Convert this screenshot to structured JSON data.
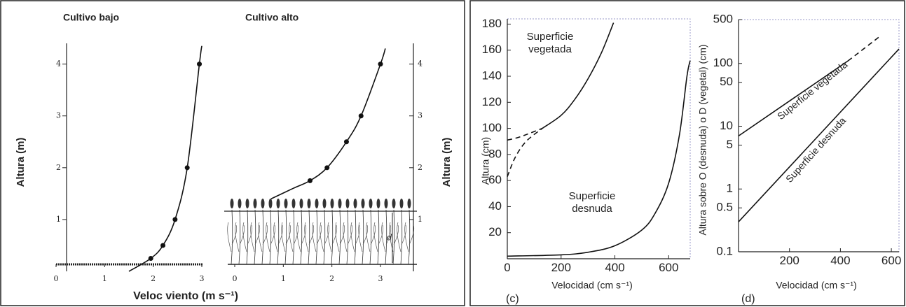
{
  "chart_data": [
    {
      "type": "line",
      "title": "Cultivo bajo",
      "xlabel": "Veloc viento (m s⁻¹)",
      "ylabel": "Altura (m)",
      "xlim": [
        0,
        3
      ],
      "ylim": [
        0,
        4.4
      ],
      "xticks": [
        0,
        1,
        2,
        3
      ],
      "yticks": [
        1,
        2,
        3,
        4
      ],
      "series": [
        {
          "mode": "line",
          "color": "#111111",
          "x": [
            1.5,
            1.95,
            2.2,
            2.45,
            2.7,
            2.95,
            3.0
          ],
          "values": [
            0,
            0.25,
            0.5,
            1,
            2,
            4,
            4.35
          ]
        },
        {
          "mode": "markers",
          "color": "#111111",
          "x": [
            1.95,
            2.2,
            2.45,
            2.7,
            2.95
          ],
          "values": [
            0.25,
            0.5,
            1,
            2,
            4
          ]
        }
      ]
    },
    {
      "type": "line",
      "title": "Cultivo alto",
      "ylabel": "Altura (m)",
      "annotations": [
        "d"
      ],
      "xlim": [
        0,
        3
      ],
      "ylim": [
        0,
        4.4
      ],
      "xticks": [
        0,
        1,
        2,
        3
      ],
      "yticks": [
        1,
        2,
        3,
        4
      ],
      "series": [
        {
          "mode": "line",
          "color": "#111111",
          "x": [
            0.75,
            1.2,
            1.55,
            1.9,
            2.3,
            2.6,
            3.0,
            3.1
          ],
          "values": [
            1.4,
            1.6,
            1.75,
            2.0,
            2.5,
            3.0,
            4.0,
            4.3
          ]
        },
        {
          "mode": "markers",
          "color": "#111111",
          "x": [
            1.55,
            1.9,
            2.3,
            2.6,
            3.0
          ],
          "values": [
            1.75,
            2.0,
            2.5,
            3.0,
            4.0
          ]
        }
      ]
    },
    {
      "type": "line",
      "panel_label": "(c)",
      "xlabel": "Velocidad (cm s⁻¹)",
      "ylabel": "Altura (cm)",
      "annotations": [
        "Superficie vegetada",
        "Superficie desnuda"
      ],
      "xlim": [
        0,
        680
      ],
      "ylim": [
        0,
        184
      ],
      "xticks": [
        0,
        200,
        400,
        600
      ],
      "yticks": [
        20,
        40,
        60,
        80,
        100,
        120,
        140,
        160,
        180
      ],
      "series": [
        {
          "mode": "line",
          "color": "#111111",
          "x": [
            130,
            200,
            250,
            300,
            350,
            395
          ],
          "values": [
            100,
            110,
            122,
            138,
            158,
            181
          ]
        },
        {
          "mode": "dashed",
          "color": "#111111",
          "x": [
            0,
            40,
            80,
            130
          ],
          "values": [
            91,
            93,
            96,
            100
          ]
        },
        {
          "mode": "dashed",
          "color": "#111111",
          "x": [
            0,
            30,
            70,
            130
          ],
          "values": [
            63,
            78,
            90,
            100
          ]
        },
        {
          "mode": "line",
          "color": "#111111",
          "x": [
            0,
            200,
            300,
            400,
            500,
            550,
            600,
            640,
            668,
            680
          ],
          "values": [
            2,
            3,
            5,
            10,
            22,
            35,
            58,
            95,
            140,
            152
          ]
        }
      ]
    },
    {
      "type": "line",
      "panel_label": "(d)",
      "xlabel": "Velocidad (cm s⁻¹)",
      "ylabel": "Altura sobre O (desnuda) o D (vegetal) (cm)",
      "annotations": [
        "Superficie vegetada",
        "Superficie desnuda"
      ],
      "log_y": true,
      "xlim": [
        0,
        630
      ],
      "ylim": [
        0.1,
        500
      ],
      "xticks": [
        200,
        400,
        600
      ],
      "yticks": [
        0.1,
        0.5,
        1,
        5,
        10,
        50,
        100,
        500
      ],
      "series": [
        {
          "mode": "line",
          "color": "#111111",
          "x": [
            0,
            430
          ],
          "values": [
            7,
            110
          ]
        },
        {
          "mode": "dashed",
          "color": "#111111",
          "x": [
            430,
            560
          ],
          "values": [
            110,
            280
          ]
        },
        {
          "mode": "line",
          "color": "#111111",
          "x": [
            0,
            630
          ],
          "values": [
            0.3,
            170
          ]
        }
      ]
    }
  ]
}
